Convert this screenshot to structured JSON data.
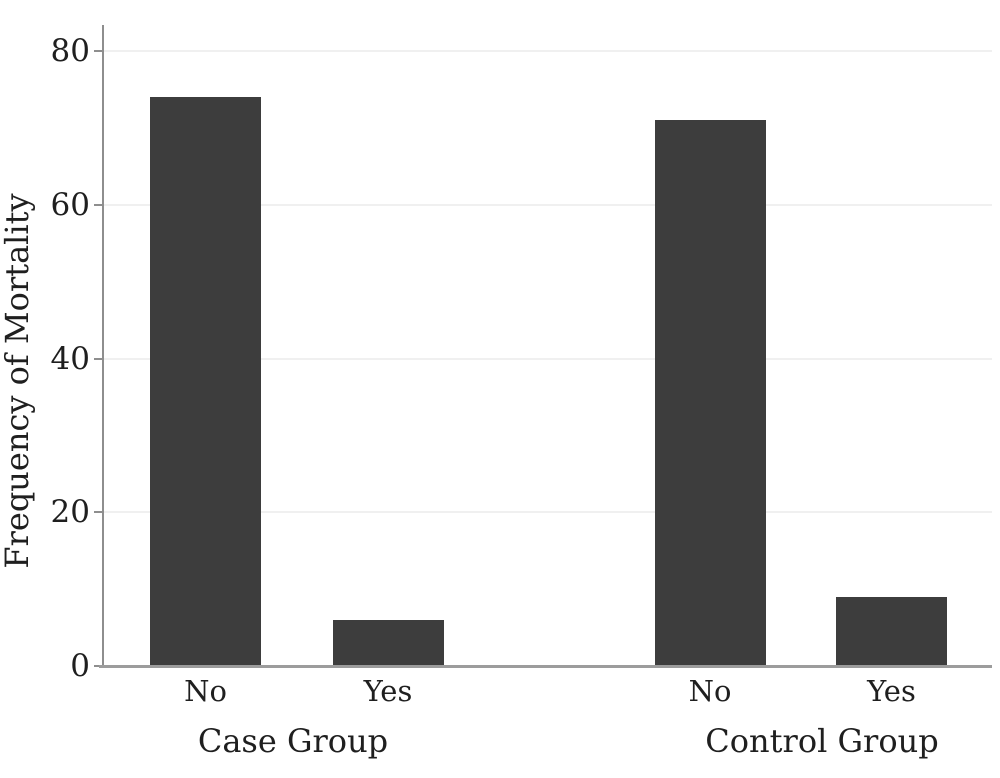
{
  "chart_data": {
    "type": "bar",
    "title": "",
    "xlabel": "",
    "ylabel": "Frequency of Mortality",
    "ylim": [
      0,
      83
    ],
    "yticks": [
      0,
      20,
      40,
      60,
      80
    ],
    "grid": true,
    "legend": "none",
    "bar_color": "#3d3d3d",
    "axis_color": "#8e8e8e",
    "grid_color": "#f0f0f0",
    "text_color": "#1f1f1f",
    "groups": [
      {
        "label": "Case Group",
        "categories": [
          "No",
          "Yes"
        ],
        "values": [
          74,
          6
        ]
      },
      {
        "label": "Control Group",
        "categories": [
          "No",
          "Yes"
        ],
        "values": [
          71,
          9
        ]
      }
    ]
  }
}
